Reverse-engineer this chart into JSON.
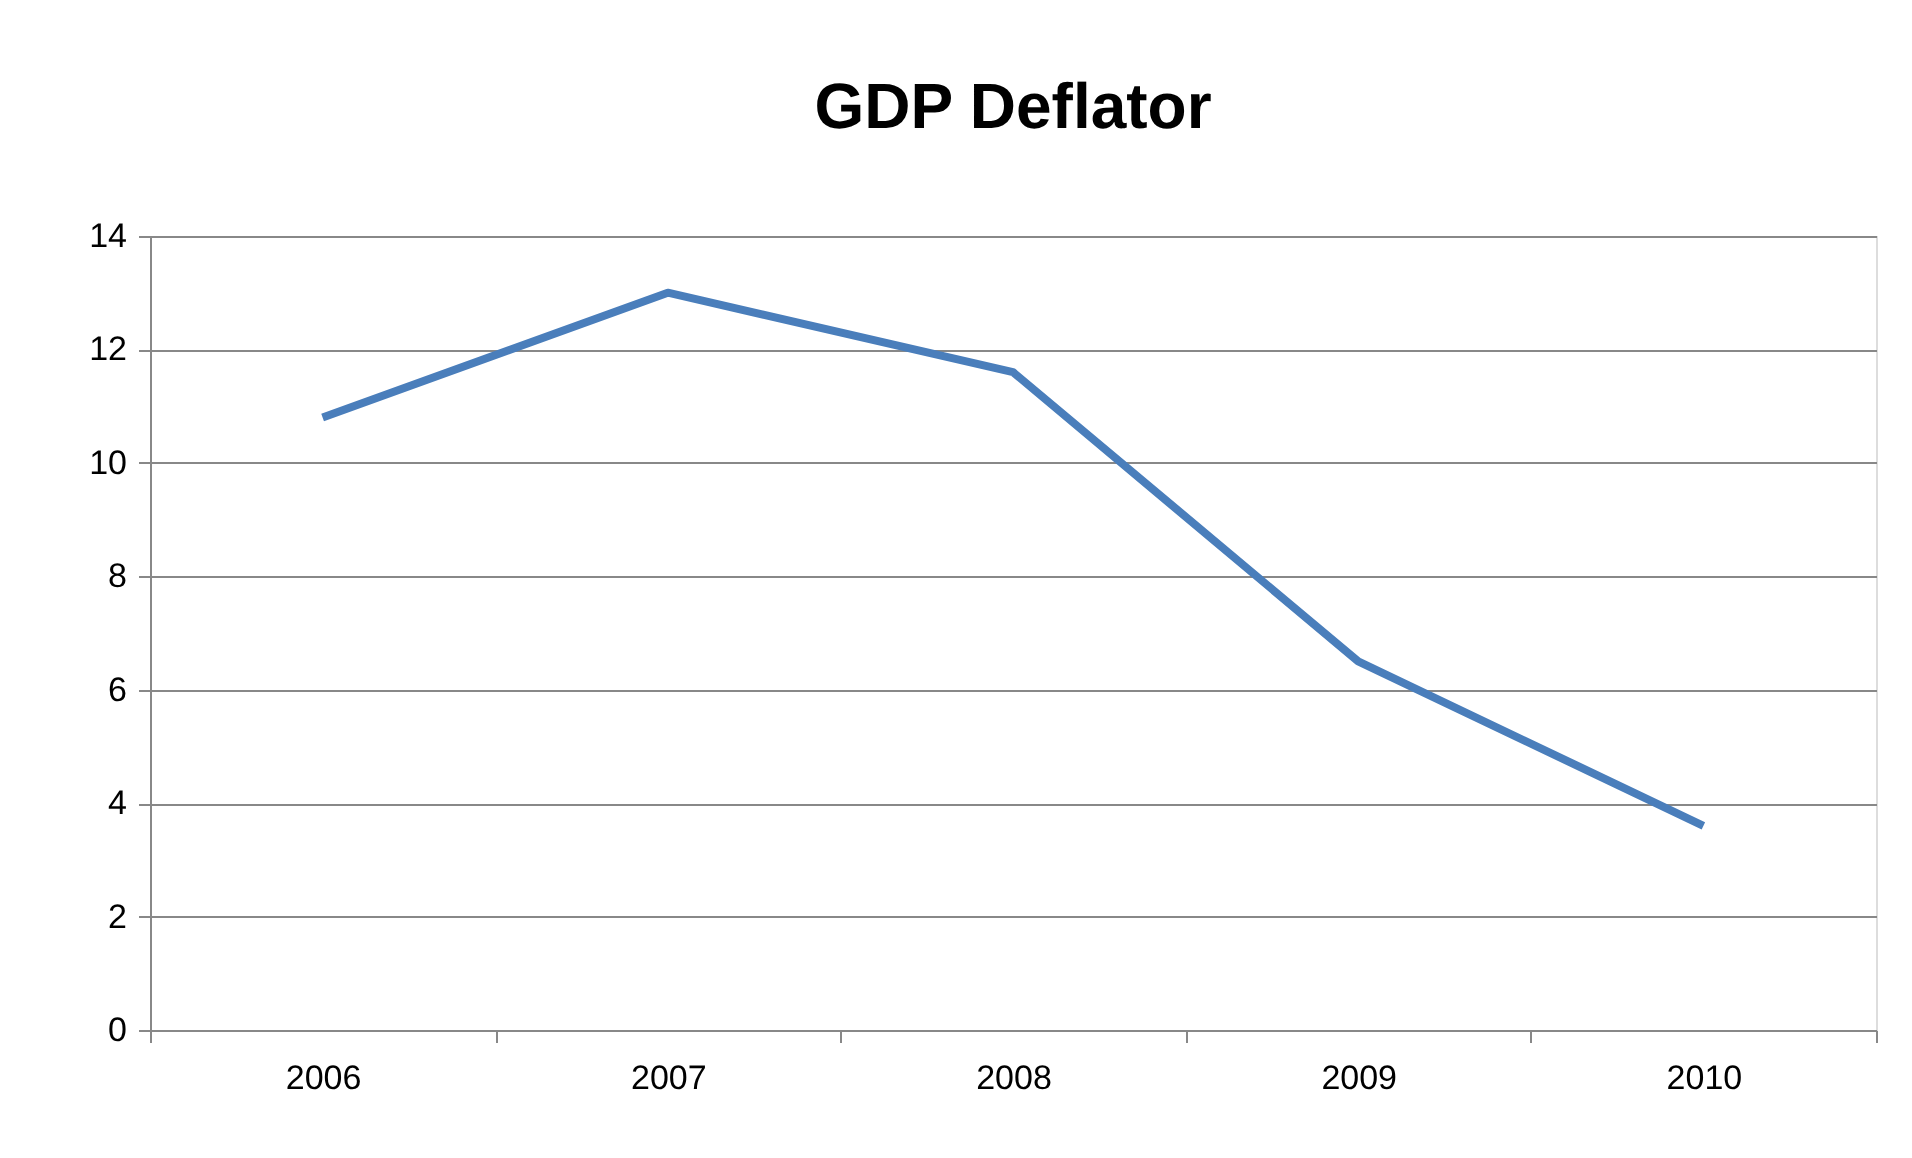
{
  "chart_data": {
    "type": "line",
    "title": "GDP Deflator",
    "categories": [
      "2006",
      "2007",
      "2008",
      "2009",
      "2010"
    ],
    "series": [
      {
        "color": "#4a7ebb",
        "values": [
          10.8,
          13.0,
          11.6,
          6.5,
          3.6
        ]
      }
    ],
    "ylim": [
      0,
      14
    ],
    "yticks": [
      0,
      2,
      4,
      6,
      8,
      10,
      12,
      14
    ],
    "grid": "y",
    "marker": "none",
    "line_style": "solid"
  }
}
